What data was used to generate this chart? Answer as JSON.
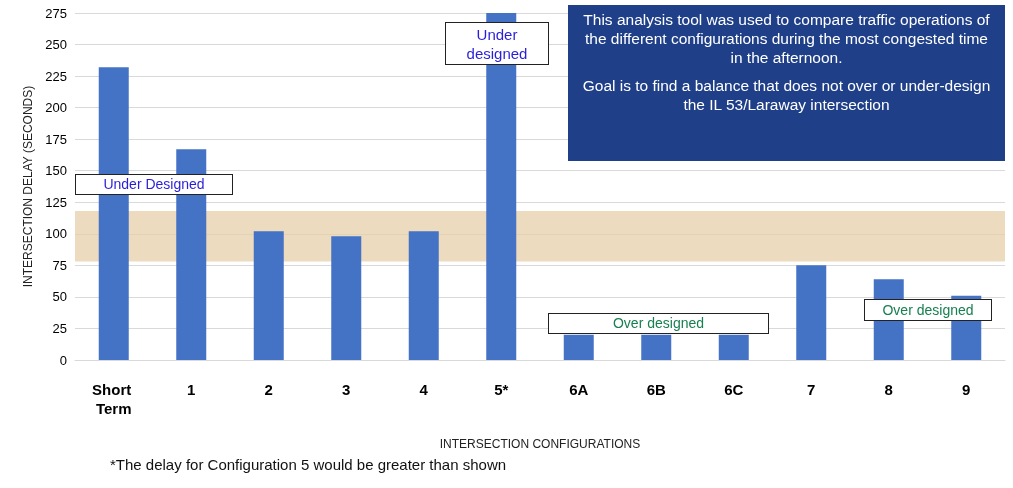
{
  "chart_data": {
    "type": "bar",
    "xlabel": "INTERSECTION CONFIGURATIONS",
    "ylabel": "INTERSECTION DELAY (SECONDS)",
    "categories": [
      "Short Term",
      "1",
      "2",
      "3",
      "4",
      "5*",
      "6A",
      "6B",
      "6C",
      "7",
      "8",
      "9"
    ],
    "values": [
      232,
      167,
      102,
      98,
      102,
      275,
      20,
      20,
      20,
      75,
      64,
      51
    ],
    "color": "#4472c4",
    "ylim": [
      0,
      275
    ],
    "yticks": [
      0,
      25,
      50,
      75,
      100,
      125,
      150,
      175,
      200,
      225,
      250,
      275
    ],
    "grid": "y",
    "bands": [
      {
        "axis": "y",
        "from": 78,
        "to": 118,
        "color": "#e6cfa8"
      }
    ],
    "annotations": [
      "Under Designed",
      "Under designed",
      "Over designed",
      "Over designed",
      "This analysis tool was used to compare traffic operations of the different configurations during the most congested time in the afternoon.",
      "Goal is to find a balance that does not over or under-design the IL 53/Laraway intersection",
      "*The delay for Configuration 5 would be greater than shown"
    ]
  }
}
